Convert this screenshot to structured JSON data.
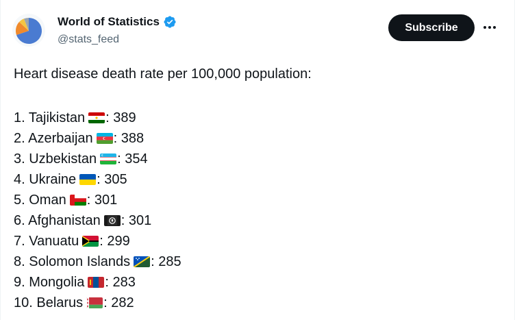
{
  "account": {
    "name": "World of Statistics",
    "handle": "@stats_feed",
    "verified": true,
    "avatar_icon": "pie-chart-avatar-icon"
  },
  "actions": {
    "subscribe_label": "Subscribe",
    "more_icon": "more-horizontal-icon"
  },
  "tweet": {
    "headline": "Heart disease death rate per 100,000 population:",
    "items": [
      {
        "prefix": "1. Tajikistan",
        "flag": "tajikistan-flag-icon",
        "suffix": ": 389"
      },
      {
        "prefix": "2. Azerbaijan",
        "flag": "azerbaijan-flag-icon",
        "suffix": ": 388"
      },
      {
        "prefix": "3. Uzbekistan",
        "flag": "uzbekistan-flag-icon",
        "suffix": ": 354"
      },
      {
        "prefix": "4. Ukraine",
        "flag": "ukraine-flag-icon",
        "suffix": ": 305"
      },
      {
        "prefix": "5. Oman",
        "flag": "oman-flag-icon",
        "suffix": ": 301"
      },
      {
        "prefix": "6. Afghanistan",
        "flag": "afghanistan-flag-icon",
        "suffix": ": 301"
      },
      {
        "prefix": "7. Vanuatu",
        "flag": "vanuatu-flag-icon",
        "suffix": ": 299"
      },
      {
        "prefix": "8. Solomon Islands",
        "flag": "solomon-islands-flag-icon",
        "suffix": ": 285"
      },
      {
        "prefix": "9. Mongolia",
        "flag": "mongolia-flag-icon",
        "suffix": ": 283"
      },
      {
        "prefix": "10. Belarus",
        "flag": "belarus-flag-icon",
        "suffix": ": 282"
      }
    ]
  },
  "colors": {
    "text": "#0f1419",
    "secondary_text": "#536471",
    "verified_blue": "#1d9bf0",
    "button_bg": "#0f1419"
  }
}
